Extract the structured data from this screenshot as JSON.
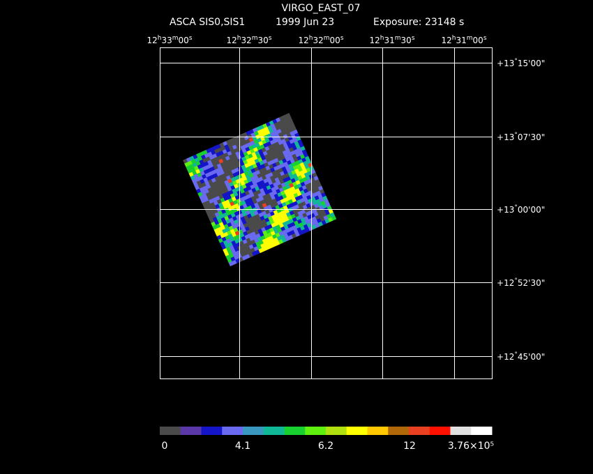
{
  "header": {
    "title": "VIRGO_EAST_07",
    "instrument": "ASCA SIS0,SIS1",
    "date": "1999 Jun 23",
    "exposure": "Exposure: 23148 s"
  },
  "ra_labels": [
    "12h33m00s",
    "12h32m30s",
    "12h32m00s",
    "12h31m30s",
    "12h31m00s"
  ],
  "dec_labels": [
    "+13°15'00\"",
    "+13°07'30\"",
    "+13°00'00\"",
    "+12°52'30\"",
    "+12°45'00\""
  ],
  "colorbar": {
    "colors": [
      "#4a4a4a",
      "#5a38a8",
      "#1414c8",
      "#6a6af0",
      "#3a98c0",
      "#10b898",
      "#18d030",
      "#60f010",
      "#b0e010",
      "#ffff00",
      "#ffc800",
      "#b06808",
      "#e84020",
      "#ff1000",
      "#e0e0e0",
      "#ffffff"
    ],
    "labels": [
      "0",
      "4.1",
      "6.2",
      "12",
      "3.76×10⁵"
    ]
  }
}
